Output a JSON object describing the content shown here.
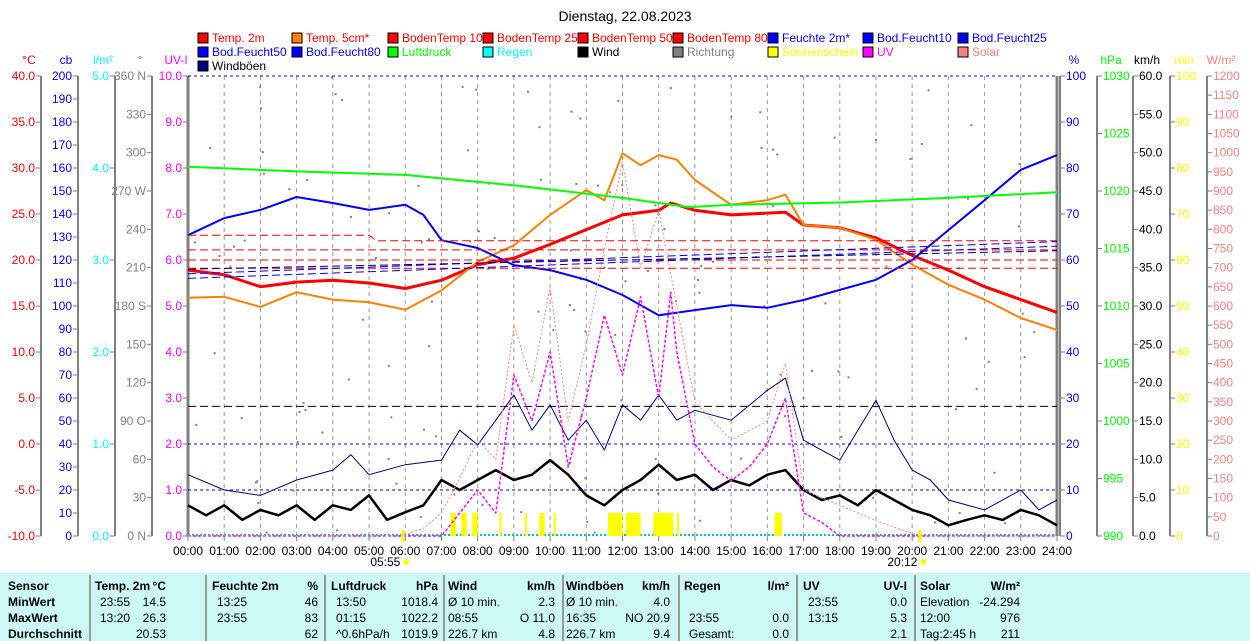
{
  "chart_data": {
    "type": "line",
    "title": "Dienstag, 22.08.2023",
    "x_ticks": [
      "00:00",
      "01:00",
      "02:00",
      "03:00",
      "04:00",
      "05:00",
      "06:00",
      "07:00",
      "08:00",
      "09:00",
      "10:00",
      "11:00",
      "12:00",
      "13:00",
      "14:00",
      "15:00",
      "16:00",
      "17:00",
      "18:00",
      "19:00",
      "20:00",
      "21:00",
      "22:00",
      "23:00",
      "24:00"
    ],
    "xlim": [
      0,
      24
    ],
    "sunrise": "05:55",
    "sunset": "20:12",
    "sunrise_h": 5.92,
    "sunset_h": 20.2,
    "legend": [
      {
        "name": "Temp. 2m",
        "color": "#ff0000",
        "text_color": "#ff0000"
      },
      {
        "name": "Temp. 5cm*",
        "color": "#ff8000",
        "text_color": "#ff0000"
      },
      {
        "name": "BodenTemp 10",
        "color": "#ff0000",
        "text_color": "#ff0000"
      },
      {
        "name": "BodenTemp 25",
        "color": "#ff0000",
        "text_color": "#ff0000"
      },
      {
        "name": "BodenTemp 50",
        "color": "#ff0000",
        "text_color": "#ff0000"
      },
      {
        "name": "BodenTemp 80",
        "color": "#ff0000",
        "text_color": "#ff0000"
      },
      {
        "name": "Feuchte 2m*",
        "color": "#0000ff",
        "text_color": "#0000ff"
      },
      {
        "name": "Bod.Feucht10",
        "color": "#0000ff",
        "text_color": "#0000ff"
      },
      {
        "name": "Bod.Feucht25",
        "color": "#0000ff",
        "text_color": "#0000ff"
      },
      {
        "name": "Bod.Feucht50",
        "color": "#0000ff",
        "text_color": "#0000ff"
      },
      {
        "name": "Bod.Feucht80",
        "color": "#0000ff",
        "text_color": "#0000ff"
      },
      {
        "name": "Luftdruck",
        "color": "#00ff00",
        "text_color": "#00ff00"
      },
      {
        "name": "Regen",
        "color": "#00ffff",
        "text_color": "#00ffff"
      },
      {
        "name": "Wind",
        "color": "#000000",
        "text_color": "#000000"
      },
      {
        "name": "Richtung",
        "color": "#808080",
        "text_color": "#808080"
      },
      {
        "name": "Sonnenschein",
        "color": "#ffff00",
        "text_color": "#ffff00"
      },
      {
        "name": "UV",
        "color": "#ff00ff",
        "text_color": "#ff00ff"
      },
      {
        "name": "Solar",
        "color": "#ff8080",
        "text_color": "#ff8080"
      },
      {
        "name": "Windböen",
        "color": "#000080",
        "text_color": "#000000"
      }
    ],
    "axes_left": [
      {
        "unit": "°C",
        "color": "#ff0000",
        "min": -10,
        "max": 40,
        "ticks": [
          "40.0",
          "35.0",
          "30.0",
          "25.0",
          "20.0",
          "15.0",
          "10.0",
          "5.0",
          "0.0",
          "-5.0",
          "-10.0"
        ]
      },
      {
        "unit": "cb",
        "color": "#0000ff",
        "min": 0,
        "max": 200,
        "ticks": [
          "200",
          "190",
          "180",
          "170",
          "160",
          "150",
          "140",
          "130",
          "120",
          "110",
          "100",
          "90",
          "80",
          "70",
          "60",
          "50",
          "40",
          "30",
          "20",
          "10",
          "0"
        ]
      },
      {
        "unit": "l/m²",
        "color": "#00ffff",
        "min": 0,
        "max": 5,
        "ticks": [
          "5.0",
          "4.0",
          "3.0",
          "2.0",
          "1.0",
          "0.0"
        ]
      },
      {
        "unit": "°",
        "color": "#808080",
        "min": 0,
        "max": 360,
        "ticks": [
          "360 N",
          "330",
          "300",
          "270 W",
          "240",
          "210",
          "180 S",
          "150",
          "120",
          "90  O",
          "60",
          "30",
          "0   N"
        ]
      },
      {
        "unit": "UV-I",
        "color": "#ff00ff",
        "min": 0,
        "max": 10,
        "ticks": [
          "10.0",
          "9.0",
          "8.0",
          "7.0",
          "6.0",
          "5.0",
          "4.0",
          "3.0",
          "2.0",
          "1.0",
          "0.0"
        ]
      }
    ],
    "axes_right": [
      {
        "unit": "%",
        "color": "#0000ff",
        "min": 0,
        "max": 100,
        "ticks": [
          "100",
          "90",
          "80",
          "70",
          "60",
          "50",
          "40",
          "30",
          "20",
          "10",
          "0"
        ]
      },
      {
        "unit": "hPa",
        "color": "#00ff00",
        "min": 990,
        "max": 1030,
        "ticks": [
          "1030",
          "1025",
          "1020",
          "1015",
          "1010",
          "1005",
          "1000",
          "995",
          "990"
        ]
      },
      {
        "unit": "km/h",
        "color": "#000000",
        "min": 0,
        "max": 60,
        "ticks": [
          "60.0",
          "55.0",
          "50.0",
          "45.0",
          "40.0",
          "35.0",
          "30.0",
          "25.0",
          "20.0",
          "15.0",
          "10.0",
          "5.0",
          "0.0"
        ]
      },
      {
        "unit": "min",
        "color": "#ffff00",
        "min": 0,
        "max": 100,
        "ticks": [
          "100",
          "90",
          "80",
          "70",
          "60",
          "50",
          "40",
          "30",
          "20",
          "10",
          "0"
        ]
      },
      {
        "unit": "W/m²",
        "color": "#ff8080",
        "min": 0,
        "max": 1200,
        "ticks": [
          "1200",
          "1150",
          "1100",
          "1050",
          "1000",
          "950",
          "900",
          "850",
          "800",
          "750",
          "700",
          "650",
          "600",
          "550",
          "500",
          "450",
          "400",
          "350",
          "300",
          "250",
          "200",
          "150",
          "100",
          "50",
          "0"
        ]
      }
    ],
    "series": [
      {
        "name": "Temp. 2m",
        "axis": "°C",
        "color": "#ff0000",
        "width": 3,
        "x": [
          0,
          1,
          2,
          3,
          4,
          5,
          6,
          7,
          8,
          9,
          10,
          11,
          12,
          13,
          13.33,
          14,
          15,
          16,
          16.5,
          17,
          18,
          19,
          20,
          21,
          22,
          23,
          24
        ],
        "y": [
          18.9,
          18.4,
          17.1,
          17.6,
          17.8,
          17.5,
          16.9,
          17.8,
          19.5,
          20.2,
          21.7,
          23.3,
          24.9,
          25.4,
          26.2,
          25.4,
          24.9,
          25.1,
          25.2,
          23.8,
          23.5,
          22.4,
          20.5,
          18.9,
          17.1,
          15.7,
          14.3
        ]
      },
      {
        "name": "Temp. 5cm*",
        "axis": "°C",
        "color": "#ff8000",
        "width": 2,
        "x": [
          0,
          1,
          2,
          3,
          4,
          5,
          6,
          7,
          8,
          9,
          10,
          11,
          11.5,
          12,
          12.5,
          13,
          13.5,
          14,
          15,
          16,
          16.5,
          17,
          18,
          19,
          20,
          21,
          22,
          23,
          24
        ],
        "y": [
          15.9,
          16.0,
          14.9,
          16.5,
          15.7,
          15.4,
          14.6,
          16.7,
          19.8,
          21.6,
          24.9,
          27.6,
          26.5,
          31.6,
          30.3,
          31.4,
          30.9,
          28.7,
          26.0,
          26.5,
          27.1,
          23.8,
          23.5,
          22.2,
          19.5,
          17.3,
          15.7,
          13.7,
          12.4
        ]
      },
      {
        "name": "Feuchte 2m*",
        "axis": "%",
        "color": "#0000ff",
        "width": 2,
        "x": [
          0,
          1,
          2,
          3,
          4,
          5,
          6,
          6.5,
          7,
          8,
          9,
          10,
          11,
          12,
          13,
          14,
          15,
          16,
          17,
          18,
          19,
          20,
          21,
          22,
          23,
          24
        ],
        "y": [
          65.4,
          69.1,
          70.9,
          73.7,
          72.4,
          70.9,
          72,
          69.8,
          64.3,
          62.6,
          58.9,
          57.8,
          55.7,
          52.4,
          48,
          49.1,
          50.2,
          49.6,
          51.3,
          53.5,
          55.7,
          60,
          66.5,
          73,
          79.6,
          82.8
        ]
      },
      {
        "name": "Luftdruck",
        "axis": "hPa",
        "color": "#00ff00",
        "width": 2,
        "x": [
          0,
          3,
          6,
          9,
          12,
          13.83,
          15,
          18,
          21,
          24
        ],
        "y": [
          1022.1,
          1021.7,
          1021.4,
          1020.5,
          1019.4,
          1018.6,
          1018.8,
          1019.0,
          1019.4,
          1019.9
        ]
      },
      {
        "name": "Windböen",
        "axis": "km/h",
        "color": "#000080",
        "width": 1,
        "x": [
          0,
          1,
          2,
          3,
          4,
          4.5,
          5,
          6,
          7,
          7.5,
          8,
          8.5,
          9,
          9.5,
          10,
          10.5,
          11,
          11.5,
          12,
          12.5,
          13,
          13.5,
          14,
          15,
          16,
          16.5,
          17,
          18,
          18.5,
          19,
          19.5,
          20,
          20.5,
          21,
          22,
          23,
          23.5,
          24
        ],
        "y": [
          8.0,
          6.0,
          5.3,
          7.3,
          8.6,
          10.6,
          8.0,
          9.3,
          9.9,
          13.8,
          11.9,
          15.1,
          18.4,
          13.8,
          17.1,
          12.5,
          15.1,
          11.2,
          17.1,
          15.1,
          18.4,
          15.1,
          16.4,
          15.1,
          19.0,
          20.6,
          12.5,
          9.9,
          13.8,
          17.7,
          12.5,
          8.6,
          7.3,
          4.7,
          3.4,
          6.0,
          3.4,
          4.7
        ]
      },
      {
        "name": "Wind",
        "axis": "km/h",
        "color": "#000000",
        "width": 2.5,
        "x": [
          0,
          0.5,
          1,
          1.5,
          2,
          2.5,
          3,
          3.5,
          4,
          4.5,
          5,
          5.5,
          6,
          6.5,
          7,
          7.5,
          8,
          8.5,
          9,
          9.5,
          10,
          10.5,
          11,
          11.5,
          12,
          12.5,
          13,
          13.5,
          14,
          14.5,
          15,
          15.5,
          16,
          16.5,
          17,
          17.5,
          18,
          18.5,
          19,
          19.5,
          20,
          20.5,
          21,
          21.5,
          22,
          22.5,
          23,
          23.5,
          24
        ],
        "y": [
          4.0,
          2.7,
          4.0,
          2.1,
          3.4,
          2.7,
          4.0,
          2.1,
          4.0,
          3.4,
          5.3,
          2.1,
          3.1,
          4.0,
          7.3,
          6.0,
          7.3,
          8.6,
          7.3,
          8.0,
          9.9,
          8.0,
          5.3,
          4.0,
          6.0,
          7.3,
          9.3,
          7.3,
          8.0,
          6.0,
          7.3,
          6.6,
          8.0,
          8.6,
          6.0,
          4.7,
          5.3,
          4.0,
          6.0,
          4.7,
          3.4,
          2.7,
          1.4,
          2.1,
          2.7,
          2.1,
          3.4,
          2.7,
          1.4
        ]
      },
      {
        "name": "UV",
        "axis": "UV-I",
        "color": "#ff00ff",
        "width": 1.5,
        "dash": "3,2",
        "x": [
          0,
          7,
          7.5,
          8,
          8.5,
          9,
          9.5,
          10,
          10.5,
          11,
          11.5,
          12,
          12.5,
          13,
          13.33,
          13.5,
          14,
          14.5,
          15,
          15.5,
          16,
          16.5,
          17,
          17.5,
          18,
          24
        ],
        "y": [
          0,
          0,
          0.5,
          1.0,
          0.5,
          3.5,
          2.5,
          4.0,
          1.5,
          3.0,
          4.8,
          3.5,
          5.2,
          3.0,
          5.3,
          4.0,
          2.0,
          1.5,
          1.2,
          1.5,
          2.0,
          3.0,
          0.5,
          0.3,
          0,
          0
        ]
      },
      {
        "name": "Solar",
        "axis": "W/m²",
        "color": "#ff8080",
        "width": 1,
        "dash": "2,2",
        "x": [
          0,
          5.9,
          6.5,
          7,
          7.5,
          8,
          8.5,
          9,
          9.5,
          10,
          10.5,
          11,
          11.5,
          12,
          12.5,
          13,
          13.5,
          14,
          15,
          16,
          16.5,
          17,
          18,
          19,
          20.2,
          24
        ],
        "y": [
          0,
          0,
          20,
          60,
          150,
          250,
          200,
          550,
          400,
          650,
          300,
          500,
          750,
          976,
          700,
          850,
          600,
          350,
          250,
          300,
          450,
          120,
          80,
          40,
          0,
          0
        ]
      },
      {
        "name": "BodenTemp 10",
        "axis": "°C",
        "color": "#ff0000",
        "width": 1,
        "dash": "8,4",
        "x": [
          0,
          24
        ],
        "y": [
          19.1,
          19.1
        ]
      },
      {
        "name": "BodenTemp 25",
        "axis": "°C",
        "color": "#ff0000",
        "width": 1,
        "dash": "8,4",
        "x": [
          0,
          24
        ],
        "y": [
          20.0,
          20.0
        ]
      },
      {
        "name": "BodenTemp 50",
        "axis": "°C",
        "color": "#ff0000",
        "width": 1,
        "dash": "8,4",
        "x": [
          0,
          24
        ],
        "y": [
          21.1,
          21.1
        ]
      },
      {
        "name": "BodenTemp 80",
        "axis": "°C",
        "color": "#ff0000",
        "width": 1,
        "dash": "8,4",
        "x": [
          0,
          5,
          5.2,
          24
        ],
        "y": [
          22.7,
          22.7,
          22.1,
          22.1
        ]
      },
      {
        "name": "Bod.Feucht10",
        "axis": "cb",
        "color": "#0000ff",
        "width": 1,
        "dash": "8,4",
        "x": [
          0,
          24
        ],
        "y": [
          112,
          126
        ]
      },
      {
        "name": "Bod.Feucht25",
        "axis": "cb",
        "color": "#0000ff",
        "width": 1,
        "dash": "8,4",
        "x": [
          0,
          24
        ],
        "y": [
          114,
          128
        ]
      },
      {
        "name": "Bod.Feucht50",
        "axis": "cb",
        "color": "#000080",
        "width": 1,
        "dash": "8,4",
        "x": [
          0,
          24
        ],
        "y": [
          116,
          124
        ]
      }
    ],
    "sunshine": {
      "axis": "min",
      "color": "#ffff00",
      "value": 5,
      "intervals": [
        [
          7.25,
          7.4
        ],
        [
          7.55,
          7.7
        ],
        [
          7.85,
          8.0
        ],
        [
          8.6,
          8.66
        ],
        [
          9.3,
          9.36
        ],
        [
          9.7,
          9.85
        ],
        [
          10.1,
          10.16
        ],
        [
          11.6,
          12.0
        ],
        [
          12.1,
          12.5
        ],
        [
          12.85,
          13.4
        ],
        [
          13.5,
          13.56
        ],
        [
          16.2,
          16.4
        ]
      ]
    }
  },
  "stats": {
    "headers": {
      "sensor": "Sensor",
      "temp": "Temp. 2m",
      "temp_u": "°C",
      "hum": "Feuchte 2m",
      "hum_u": "%",
      "press": "Luftdruck",
      "press_u": "hPa",
      "wind": "Wind",
      "wind_u": "km/h",
      "gust": "Windböen",
      "gust_u": "km/h",
      "rain": "Regen",
      "rain_u": "l/m²",
      "uv": "UV",
      "uv_u": "UV-I",
      "solar": "Solar",
      "solar_u": "W/m²"
    },
    "rows": [
      {
        "label": "MinWert",
        "temp_t": "23:55",
        "temp_v": "14.5",
        "hum_t": "13:25",
        "hum_v": "46",
        "press_t": "13:50",
        "press_v": "1018.4",
        "wind_t": "Ø 10 min.",
        "wind_v": "2.3",
        "gust_t": "Ø 10 min.",
        "gust_v": "4.0",
        "rain_t": "",
        "rain_v": "",
        "uv_t": "23:55",
        "uv_v": "0.0",
        "solar_t": "Elevation",
        "solar_v": "-24.294"
      },
      {
        "label": "MaxWert",
        "temp_t": "13:20",
        "temp_v": "26.3",
        "hum_t": "23:55",
        "hum_v": "83",
        "press_t": "01:15",
        "press_v": "1022.2",
        "wind_t": "08:55",
        "wind_v": "O 11.0",
        "gust_t": "16:35",
        "gust_v": "NO 20.9",
        "rain_t": "23:55",
        "rain_v": "0.0",
        "uv_t": "13:15",
        "uv_v": "5.3",
        "solar_t": "12:00",
        "solar_v": "976"
      },
      {
        "label": "Durchschnitt",
        "temp_t": "",
        "temp_v": "20.53",
        "hum_t": "",
        "hum_v": "62",
        "press_t": "^0.6hPa/h",
        "press_v": "1019.9",
        "wind_t": "226.7 km",
        "wind_v": "4.8",
        "gust_t": "226.7 km",
        "gust_v": "9.4",
        "rain_t": "Gesamt:",
        "rain_v": "0.0",
        "uv_t": "",
        "uv_v": "2.1",
        "solar_t": "Tag:2:45 h",
        "solar_v": "211"
      }
    ]
  }
}
